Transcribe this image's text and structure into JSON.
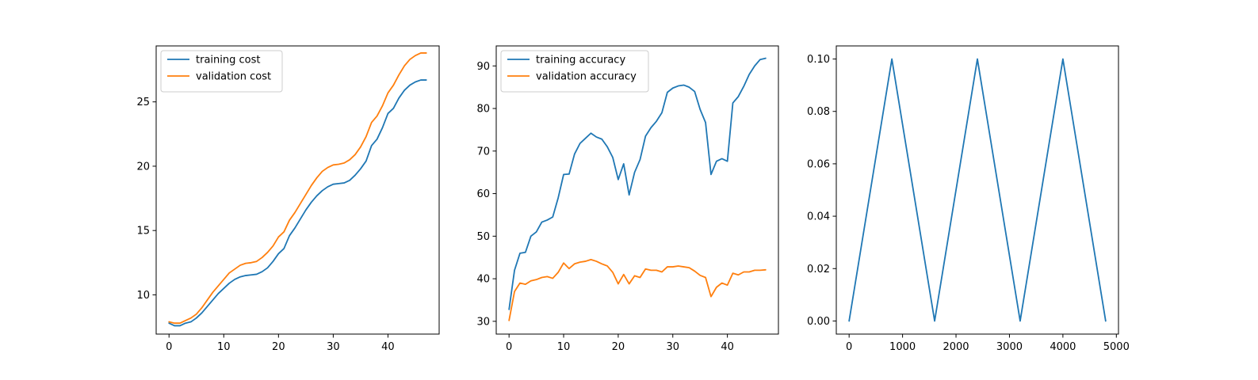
{
  "colors": {
    "blue": "#1f77b4",
    "orange": "#ff7f0e"
  },
  "chart_data": [
    {
      "type": "line",
      "xlim": [
        -2.35,
        49.35
      ],
      "ylim": [
        6.95,
        29.35
      ],
      "xticks": [
        0,
        10,
        20,
        30,
        40
      ],
      "yticks": [
        10,
        15,
        20,
        25
      ],
      "legend": "top-left",
      "grid": false,
      "series": [
        {
          "name": "training cost",
          "color": "#1f77b4",
          "x": [
            0,
            1,
            2,
            3,
            4,
            5,
            6,
            7,
            8,
            9,
            10,
            11,
            12,
            13,
            14,
            15,
            16,
            17,
            18,
            19,
            20,
            21,
            22,
            23,
            24,
            25,
            26,
            27,
            28,
            29,
            30,
            31,
            32,
            33,
            34,
            35,
            36,
            37,
            38,
            39,
            40,
            41,
            42,
            43,
            44,
            45,
            46,
            47
          ],
          "y": [
            7.8,
            7.6,
            7.6,
            7.8,
            7.9,
            8.2,
            8.6,
            9.1,
            9.6,
            10.1,
            10.5,
            10.9,
            11.2,
            11.4,
            11.5,
            11.55,
            11.6,
            11.8,
            12.1,
            12.6,
            13.2,
            13.6,
            14.6,
            15.2,
            15.9,
            16.6,
            17.2,
            17.7,
            18.1,
            18.4,
            18.6,
            18.65,
            18.7,
            18.9,
            19.3,
            19.8,
            20.4,
            21.6,
            22.1,
            23.0,
            24.1,
            24.5,
            25.3,
            25.9,
            26.3,
            26.55,
            26.7,
            26.7
          ]
        },
        {
          "name": "validation cost",
          "color": "#ff7f0e",
          "x": [
            0,
            1,
            2,
            3,
            4,
            5,
            6,
            7,
            8,
            9,
            10,
            11,
            12,
            13,
            14,
            15,
            16,
            17,
            18,
            19,
            20,
            21,
            22,
            23,
            24,
            25,
            26,
            27,
            28,
            29,
            30,
            31,
            32,
            33,
            34,
            35,
            36,
            37,
            38,
            39,
            40,
            41,
            42,
            43,
            44,
            45,
            46,
            47
          ],
          "y": [
            7.9,
            7.8,
            7.8,
            8.0,
            8.2,
            8.5,
            9.0,
            9.6,
            10.2,
            10.7,
            11.2,
            11.7,
            12.0,
            12.3,
            12.45,
            12.5,
            12.6,
            12.9,
            13.3,
            13.8,
            14.5,
            14.9,
            15.8,
            16.4,
            17.1,
            17.8,
            18.5,
            19.1,
            19.6,
            19.9,
            20.1,
            20.15,
            20.25,
            20.5,
            20.9,
            21.5,
            22.3,
            23.4,
            23.9,
            24.7,
            25.7,
            26.3,
            27.1,
            27.8,
            28.3,
            28.6,
            28.8,
            28.8
          ]
        }
      ]
    },
    {
      "type": "line",
      "xlim": [
        -2.35,
        49.35
      ],
      "ylim": [
        27.0,
        94.7
      ],
      "xticks": [
        0,
        10,
        20,
        30,
        40
      ],
      "yticks": [
        30,
        40,
        50,
        60,
        70,
        80,
        90
      ],
      "legend": "top-left",
      "grid": false,
      "series": [
        {
          "name": "training accuracy",
          "color": "#1f77b4",
          "x": [
            0,
            1,
            2,
            3,
            4,
            5,
            6,
            7,
            8,
            9,
            10,
            11,
            12,
            13,
            14,
            15,
            16,
            17,
            18,
            19,
            20,
            21,
            22,
            23,
            24,
            25,
            26,
            27,
            28,
            29,
            30,
            31,
            32,
            33,
            34,
            35,
            36,
            37,
            38,
            39,
            40,
            41,
            42,
            43,
            44,
            45,
            46,
            47
          ],
          "y": [
            32.8,
            42.0,
            46.0,
            46.2,
            50.0,
            51.0,
            53.3,
            53.8,
            54.5,
            59.0,
            64.5,
            64.6,
            69.3,
            71.8,
            73.0,
            74.2,
            73.3,
            72.8,
            71.0,
            68.5,
            63.3,
            67.0,
            59.7,
            65.0,
            68.0,
            73.5,
            75.5,
            77.0,
            79.0,
            83.8,
            84.8,
            85.3,
            85.5,
            85.0,
            84.0,
            79.8,
            76.7,
            64.5,
            67.6,
            68.2,
            67.6,
            81.3,
            82.8,
            85.2,
            88.0,
            90.0,
            91.5,
            91.8
          ]
        },
        {
          "name": "validation accuracy",
          "color": "#ff7f0e",
          "x": [
            0,
            1,
            2,
            3,
            4,
            5,
            6,
            7,
            8,
            9,
            10,
            11,
            12,
            13,
            14,
            15,
            16,
            17,
            18,
            19,
            20,
            21,
            22,
            23,
            24,
            25,
            26,
            27,
            28,
            29,
            30,
            31,
            32,
            33,
            34,
            35,
            36,
            37,
            38,
            39,
            40,
            41,
            42,
            43,
            44,
            45,
            46,
            47
          ],
          "y": [
            30.2,
            37.0,
            39.0,
            38.7,
            39.5,
            39.8,
            40.3,
            40.5,
            40.1,
            41.5,
            43.7,
            42.4,
            43.5,
            43.9,
            44.1,
            44.5,
            44.1,
            43.5,
            43.0,
            41.5,
            38.8,
            41.0,
            38.8,
            40.7,
            40.3,
            42.3,
            42.0,
            42.0,
            41.6,
            42.8,
            42.8,
            43.0,
            42.8,
            42.6,
            41.8,
            40.8,
            40.3,
            35.8,
            38.0,
            39.0,
            38.5,
            41.3,
            40.9,
            41.6,
            41.6,
            42.0,
            42.0,
            42.1
          ]
        }
      ]
    },
    {
      "type": "line",
      "xlim": [
        -240,
        5040
      ],
      "ylim": [
        -0.005,
        0.105
      ],
      "xticks": [
        0,
        1000,
        2000,
        3000,
        4000,
        5000
      ],
      "yticks": [
        0.0,
        0.02,
        0.04,
        0.06,
        0.08,
        0.1
      ],
      "ytick_labels": [
        "0.00",
        "0.02",
        "0.04",
        "0.06",
        "0.08",
        "0.10"
      ],
      "grid": false,
      "series": [
        {
          "color": "#1f77b4",
          "x": [
            0,
            800,
            1600,
            2400,
            3200,
            4000,
            4800
          ],
          "y": [
            0.0,
            0.1,
            0.0,
            0.1,
            0.0,
            0.1,
            0.0
          ]
        }
      ]
    }
  ]
}
